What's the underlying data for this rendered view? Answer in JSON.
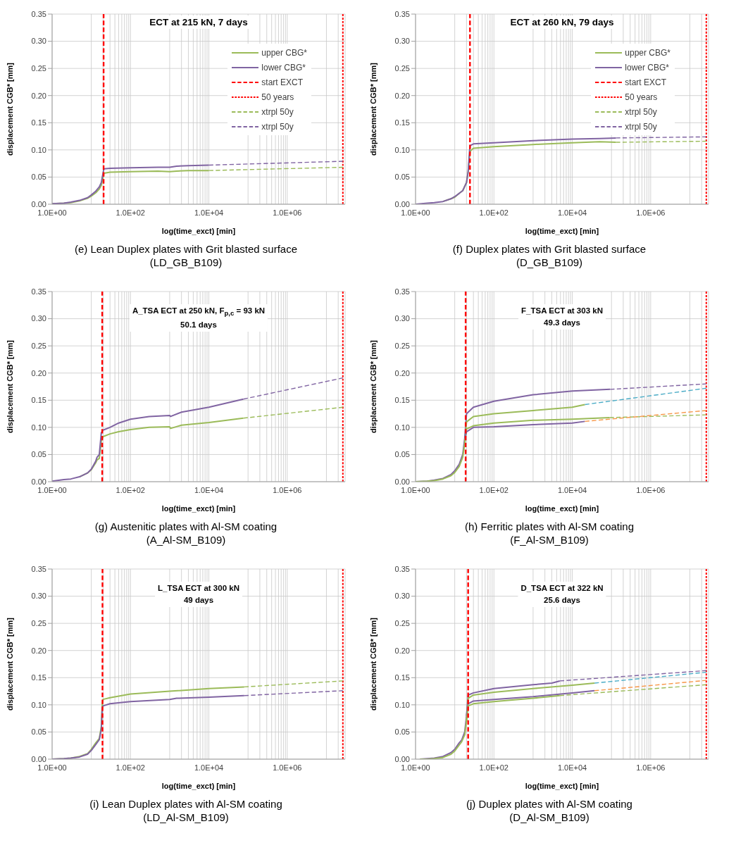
{
  "chart_data": [
    {
      "type": "line",
      "title": "ECT at 215 kN, 7 days",
      "xlabel": "log(time_exct) [min]",
      "ylabel": "displacement CGB* [mm]",
      "annotations": [
        "(e) Lean Duplex plates with Grit blasted surface",
        "(LD_GB_B109)"
      ],
      "log": "x",
      "grid": true,
      "legend": "top right",
      "marker": "none",
      "xlim": [
        1,
        30000000
      ],
      "ylim": [
        0,
        0.35
      ],
      "xticks": [
        {
          "value": 1,
          "label": "1.0E+00"
        },
        {
          "value": 10,
          "label": null
        },
        {
          "value": 20,
          "label": null
        },
        {
          "value": 30,
          "label": null
        },
        {
          "value": 40,
          "label": null
        },
        {
          "value": 50,
          "label": null
        },
        {
          "value": 60,
          "label": null
        },
        {
          "value": 70,
          "label": null
        },
        {
          "value": 80,
          "label": null
        },
        {
          "value": 90,
          "label": null
        },
        {
          "value": 100,
          "label": "1.0E+02"
        },
        {
          "value": 1000,
          "label": null
        },
        {
          "value": 2000,
          "label": null
        },
        {
          "value": 3000,
          "label": null
        },
        {
          "value": 4000,
          "label": null
        },
        {
          "value": 5000,
          "label": null
        },
        {
          "value": 6000,
          "label": null
        },
        {
          "value": 7000,
          "label": null
        },
        {
          "value": 8000,
          "label": null
        },
        {
          "value": 9000,
          "label": null
        },
        {
          "value": 10000,
          "label": "1.0E+04"
        },
        {
          "value": 100000,
          "label": null
        },
        {
          "value": 200000,
          "label": null
        },
        {
          "value": 300000,
          "label": null
        },
        {
          "value": 400000,
          "label": null
        },
        {
          "value": 500000,
          "label": null
        },
        {
          "value": 600000,
          "label": null
        },
        {
          "value": 700000,
          "label": null
        },
        {
          "value": 800000,
          "label": null
        },
        {
          "value": 900000,
          "label": null
        },
        {
          "value": 1000000,
          "label": "1.0E+06"
        },
        {
          "value": 10000000,
          "label": null
        },
        {
          "value": 20000000,
          "label": null
        }
      ],
      "yticks": [
        {
          "value": 0,
          "label": "0.00"
        },
        {
          "value": 0.05,
          "label": "0.05"
        },
        {
          "value": 0.1,
          "label": "0.10"
        },
        {
          "value": 0.15,
          "label": "0.15"
        },
        {
          "value": 0.2,
          "label": "0.20"
        },
        {
          "value": 0.25,
          "label": "0.25"
        },
        {
          "value": 0.3,
          "label": "0.30"
        },
        {
          "value": 0.35,
          "label": "0.35"
        }
      ],
      "series": [
        {
          "name": "upper CBG*",
          "color": "#9bbb59",
          "line_style": "solid",
          "x": [
            1,
            2,
            3,
            5,
            8,
            10,
            13,
            16,
            18,
            20,
            21,
            30,
            100,
            500,
            1000,
            1500,
            3000,
            10000
          ],
          "values": [
            0.001,
            0.002,
            0.003,
            0.006,
            0.011,
            0.015,
            0.021,
            0.028,
            0.035,
            0.05,
            0.057,
            0.059,
            0.06,
            0.061,
            0.06,
            0.061,
            0.062,
            0.062
          ]
        },
        {
          "name": "lower CBG*",
          "color": "#8064a2",
          "line_style": "solid",
          "x": [
            1,
            2,
            3,
            5,
            8,
            10,
            13,
            16,
            18,
            20,
            21,
            30,
            100,
            500,
            1000,
            1500,
            3000,
            10000
          ],
          "values": [
            0.001,
            0.002,
            0.004,
            0.007,
            0.012,
            0.017,
            0.024,
            0.032,
            0.04,
            0.058,
            0.065,
            0.066,
            0.067,
            0.068,
            0.068,
            0.07,
            0.071,
            0.072
          ]
        },
        {
          "name": "start EXCT",
          "color": "#ff0000",
          "line_style": "dashed",
          "x": [
            20.6,
            20.6
          ],
          "values": [
            0,
            0.35
          ]
        },
        {
          "name": "50 years",
          "color": "#ff0000",
          "line_style": "dotted",
          "x": [
            26300000,
            26300000
          ],
          "values": [
            0,
            0.35
          ]
        },
        {
          "name": "xtrpl 50y",
          "color": "#9bbb59",
          "line_style": "dashed",
          "x": [
            10000,
            26300000
          ],
          "values": [
            0.062,
            0.068
          ]
        },
        {
          "name": "xtrpl 50y",
          "color": "#8064a2",
          "line_style": "dashed",
          "x": [
            10000,
            26300000
          ],
          "values": [
            0.072,
            0.079
          ]
        }
      ]
    },
    {
      "type": "line",
      "title": "ECT at 260 kN, 79 days",
      "xlabel": "log(time_exct) [min]",
      "ylabel": "displacement CGB* [mm]",
      "annotations": [
        "(f) Duplex plates with Grit blasted surface",
        "(D_GB_B109)"
      ],
      "log": "x",
      "grid": true,
      "legend": "top right",
      "marker": "none",
      "xlim": [
        1,
        30000000
      ],
      "ylim": [
        0,
        0.35
      ],
      "xticks": [
        {
          "value": 1,
          "label": "1.0E+00"
        },
        {
          "value": 10,
          "label": null
        },
        {
          "value": 20,
          "label": null
        },
        {
          "value": 30,
          "label": null
        },
        {
          "value": 40,
          "label": null
        },
        {
          "value": 50,
          "label": null
        },
        {
          "value": 60,
          "label": null
        },
        {
          "value": 70,
          "label": null
        },
        {
          "value": 80,
          "label": null
        },
        {
          "value": 90,
          "label": null
        },
        {
          "value": 100,
          "label": "1.0E+02"
        },
        {
          "value": 1000,
          "label": null
        },
        {
          "value": 2000,
          "label": null
        },
        {
          "value": 3000,
          "label": null
        },
        {
          "value": 4000,
          "label": null
        },
        {
          "value": 5000,
          "label": null
        },
        {
          "value": 6000,
          "label": null
        },
        {
          "value": 7000,
          "label": null
        },
        {
          "value": 8000,
          "label": null
        },
        {
          "value": 9000,
          "label": null
        },
        {
          "value": 10000,
          "label": "1.0E+04"
        },
        {
          "value": 100000,
          "label": null
        },
        {
          "value": 200000,
          "label": null
        },
        {
          "value": 300000,
          "label": null
        },
        {
          "value": 400000,
          "label": null
        },
        {
          "value": 500000,
          "label": null
        },
        {
          "value": 600000,
          "label": null
        },
        {
          "value": 700000,
          "label": null
        },
        {
          "value": 800000,
          "label": null
        },
        {
          "value": 900000,
          "label": null
        },
        {
          "value": 1000000,
          "label": "1.0E+06"
        },
        {
          "value": 10000000,
          "label": null
        },
        {
          "value": 20000000,
          "label": null
        }
      ],
      "yticks": [
        {
          "value": 0,
          "label": "0.00"
        },
        {
          "value": 0.05,
          "label": "0.05"
        },
        {
          "value": 0.1,
          "label": "0.10"
        },
        {
          "value": 0.15,
          "label": "0.15"
        },
        {
          "value": 0.2,
          "label": "0.20"
        },
        {
          "value": 0.25,
          "label": "0.25"
        },
        {
          "value": 0.3,
          "label": "0.30"
        },
        {
          "value": 0.35,
          "label": "0.35"
        }
      ],
      "series": [
        {
          "name": "upper CBG*",
          "color": "#9bbb59",
          "line_style": "solid",
          "x": [
            5,
            8,
            10,
            13,
            16,
            20,
            22,
            24,
            25,
            30,
            100,
            1000,
            10000,
            50000,
            130000
          ],
          "values": [
            0.005,
            0.01,
            0.013,
            0.02,
            0.025,
            0.04,
            0.06,
            0.09,
            0.098,
            0.103,
            0.106,
            0.11,
            0.113,
            0.115,
            0.114
          ]
        },
        {
          "name": "lower CBG*",
          "color": "#8064a2",
          "line_style": "solid",
          "x": [
            1,
            2,
            3,
            5,
            8,
            10,
            13,
            16,
            20,
            22,
            24,
            25,
            30,
            100,
            1000,
            10000,
            50000,
            130000
          ],
          "values": [
            0,
            0.002,
            0.003,
            0.005,
            0.01,
            0.014,
            0.02,
            0.025,
            0.04,
            0.06,
            0.1,
            0.108,
            0.111,
            0.113,
            0.117,
            0.12,
            0.121,
            0.122
          ]
        },
        {
          "name": "start EXCT",
          "color": "#ff0000",
          "line_style": "dashed",
          "x": [
            24.5,
            24.5
          ],
          "values": [
            0,
            0.35
          ]
        },
        {
          "name": "50 years",
          "color": "#ff0000",
          "line_style": "dotted",
          "x": [
            26300000,
            26300000
          ],
          "values": [
            0,
            0.35
          ]
        },
        {
          "name": "xtrpl 50y",
          "color": "#9bbb59",
          "line_style": "dashed",
          "x": [
            130000,
            26300000
          ],
          "values": [
            0.114,
            0.116
          ]
        },
        {
          "name": "xtrpl 50y",
          "color": "#8064a2",
          "line_style": "dashed",
          "x": [
            130000,
            26300000
          ],
          "values": [
            0.122,
            0.124
          ]
        }
      ]
    },
    {
      "type": "line",
      "title": "A_TSA ECT at 250 kN, F$_{p,c}$ = 93 kN",
      "subtitle": "50.1 days",
      "xlabel": "log(time_exct) [min]",
      "ylabel": "displacement CGB* [mm]",
      "annotations": [
        "(g) Austenitic plates with Al-SM coating",
        "(A_Al-SM_B109)"
      ],
      "log": "x",
      "grid": true,
      "marker": "none",
      "xlim": [
        1,
        30000000
      ],
      "ylim": [
        0,
        0.35
      ],
      "xticks": [
        {
          "value": 1,
          "label": "1.0E+00"
        },
        {
          "value": 10,
          "label": null
        },
        {
          "value": 20,
          "label": null
        },
        {
          "value": 30,
          "label": null
        },
        {
          "value": 40,
          "label": null
        },
        {
          "value": 50,
          "label": null
        },
        {
          "value": 60,
          "label": null
        },
        {
          "value": 70,
          "label": null
        },
        {
          "value": 80,
          "label": null
        },
        {
          "value": 90,
          "label": null
        },
        {
          "value": 100,
          "label": "1.0E+02"
        },
        {
          "value": 1000,
          "label": null
        },
        {
          "value": 2000,
          "label": null
        },
        {
          "value": 3000,
          "label": null
        },
        {
          "value": 4000,
          "label": null
        },
        {
          "value": 5000,
          "label": null
        },
        {
          "value": 6000,
          "label": null
        },
        {
          "value": 7000,
          "label": null
        },
        {
          "value": 8000,
          "label": null
        },
        {
          "value": 9000,
          "label": null
        },
        {
          "value": 10000,
          "label": "1.0E+04"
        },
        {
          "value": 100000,
          "label": null
        },
        {
          "value": 200000,
          "label": null
        },
        {
          "value": 300000,
          "label": null
        },
        {
          "value": 400000,
          "label": null
        },
        {
          "value": 500000,
          "label": null
        },
        {
          "value": 600000,
          "label": null
        },
        {
          "value": 700000,
          "label": null
        },
        {
          "value": 800000,
          "label": null
        },
        {
          "value": 900000,
          "label": null
        },
        {
          "value": 1000000,
          "label": "1.0E+06"
        },
        {
          "value": 10000000,
          "label": null
        },
        {
          "value": 20000000,
          "label": null
        }
      ],
      "yticks": [
        {
          "value": 0,
          "label": "0.00"
        },
        {
          "value": 0.05,
          "label": "0.05"
        },
        {
          "value": 0.1,
          "label": "0.10"
        },
        {
          "value": 0.15,
          "label": "0.15"
        },
        {
          "value": 0.2,
          "label": "0.20"
        },
        {
          "value": 0.25,
          "label": "0.25"
        },
        {
          "value": 0.3,
          "label": "0.30"
        },
        {
          "value": 0.35,
          "label": "0.35"
        }
      ],
      "series": [
        {
          "color": "#9bbb59",
          "line_style": "solid",
          "x": [
            5,
            8,
            10,
            13,
            14,
            16,
            18,
            20,
            30,
            50,
            100,
            300,
            1000,
            1050,
            2000,
            10000,
            76000
          ],
          "values": [
            0.009,
            0.016,
            0.022,
            0.035,
            0.04,
            0.043,
            0.075,
            0.083,
            0.088,
            0.092,
            0.096,
            0.1,
            0.101,
            0.098,
            0.104,
            0.109,
            0.117
          ]
        },
        {
          "color": "#8064a2",
          "line_style": "solid",
          "x": [
            1,
            2,
            3,
            5,
            8,
            10,
            13,
            14,
            16,
            18,
            20,
            30,
            50,
            100,
            300,
            1000,
            1050,
            2000,
            10000,
            76000
          ],
          "values": [
            0.001,
            0.004,
            0.005,
            0.009,
            0.016,
            0.023,
            0.038,
            0.045,
            0.05,
            0.09,
            0.095,
            0.1,
            0.108,
            0.115,
            0.12,
            0.122,
            0.12,
            0.128,
            0.137,
            0.152
          ]
        },
        {
          "color": "#ff0000",
          "line_style": "dashed",
          "x": [
            19,
            19
          ],
          "values": [
            0,
            0.35
          ]
        },
        {
          "color": "#ff0000",
          "line_style": "dotted",
          "x": [
            26300000,
            26300000
          ],
          "values": [
            0,
            0.35
          ]
        },
        {
          "color": "#9bbb59",
          "line_style": "dashed",
          "x": [
            76000,
            26300000
          ],
          "values": [
            0.117,
            0.137
          ]
        },
        {
          "color": "#8064a2",
          "line_style": "dashed",
          "x": [
            76000,
            26300000
          ],
          "values": [
            0.152,
            0.191
          ]
        }
      ]
    },
    {
      "type": "line",
      "title": "F_TSA ECT at 303 kN",
      "subtitle": "49.3 days",
      "xlabel": "log(time_exct) [min]",
      "ylabel": "displacement CGB* [mm]",
      "annotations": [
        "(h) Ferritic plates with Al-SM coating",
        "(F_Al-SM_B109)"
      ],
      "log": "x",
      "grid": true,
      "marker": "none",
      "xlim": [
        1,
        30000000
      ],
      "ylim": [
        0,
        0.35
      ],
      "xticks": [
        {
          "value": 1,
          "label": "1.0E+00"
        },
        {
          "value": 10,
          "label": null
        },
        {
          "value": 20,
          "label": null
        },
        {
          "value": 30,
          "label": null
        },
        {
          "value": 40,
          "label": null
        },
        {
          "value": 50,
          "label": null
        },
        {
          "value": 60,
          "label": null
        },
        {
          "value": 70,
          "label": null
        },
        {
          "value": 80,
          "label": null
        },
        {
          "value": 90,
          "label": null
        },
        {
          "value": 100,
          "label": "1.0E+02"
        },
        {
          "value": 1000,
          "label": null
        },
        {
          "value": 2000,
          "label": null
        },
        {
          "value": 3000,
          "label": null
        },
        {
          "value": 4000,
          "label": null
        },
        {
          "value": 5000,
          "label": null
        },
        {
          "value": 6000,
          "label": null
        },
        {
          "value": 7000,
          "label": null
        },
        {
          "value": 8000,
          "label": null
        },
        {
          "value": 9000,
          "label": null
        },
        {
          "value": 10000,
          "label": "1.0E+04"
        },
        {
          "value": 100000,
          "label": null
        },
        {
          "value": 200000,
          "label": null
        },
        {
          "value": 300000,
          "label": null
        },
        {
          "value": 400000,
          "label": null
        },
        {
          "value": 500000,
          "label": null
        },
        {
          "value": 600000,
          "label": null
        },
        {
          "value": 700000,
          "label": null
        },
        {
          "value": 800000,
          "label": null
        },
        {
          "value": 900000,
          "label": null
        },
        {
          "value": 1000000,
          "label": "1.0E+06"
        },
        {
          "value": 10000000,
          "label": null
        },
        {
          "value": 20000000,
          "label": null
        }
      ],
      "yticks": [
        {
          "value": 0,
          "label": "0.00"
        },
        {
          "value": 0.05,
          "label": "0.05"
        },
        {
          "value": 0.1,
          "label": "0.10"
        },
        {
          "value": 0.15,
          "label": "0.15"
        },
        {
          "value": 0.2,
          "label": "0.20"
        },
        {
          "value": 0.25,
          "label": "0.25"
        },
        {
          "value": 0.3,
          "label": "0.30"
        },
        {
          "value": 0.35,
          "label": "0.35"
        }
      ],
      "series": [
        {
          "color": "#8064a2",
          "line_style": "solid",
          "x": [
            1,
            2,
            3,
            5,
            8,
            10,
            13,
            16,
            18,
            20,
            30,
            100,
            1000,
            10000,
            93000
          ],
          "values": [
            0,
            0.001,
            0.003,
            0.006,
            0.013,
            0.02,
            0.032,
            0.05,
            0.08,
            0.125,
            0.137,
            0.148,
            0.16,
            0.167,
            0.17
          ]
        },
        {
          "color": "#9bbb59",
          "line_style": "solid",
          "x": [
            1,
            2,
            3,
            5,
            8,
            10,
            13,
            16,
            18,
            20,
            30,
            100,
            1000,
            10000,
            21000
          ],
          "values": [
            0,
            0.001,
            0.002,
            0.005,
            0.011,
            0.017,
            0.028,
            0.045,
            0.07,
            0.11,
            0.12,
            0.125,
            0.131,
            0.137,
            0.142
          ]
        },
        {
          "color": "#9bbb59",
          "line_style": "solid",
          "x": [
            18,
            20,
            30,
            100,
            1000,
            10000,
            90000
          ],
          "values": [
            0.07,
            0.097,
            0.103,
            0.108,
            0.113,
            0.115,
            0.118
          ]
        },
        {
          "color": "#8064a2",
          "line_style": "solid",
          "x": [
            18,
            20,
            30,
            100,
            1000,
            10000,
            21000
          ],
          "values": [
            0.08,
            0.092,
            0.1,
            0.101,
            0.105,
            0.108,
            0.111
          ]
        },
        {
          "color": "#ff0000",
          "line_style": "dashed",
          "x": [
            19,
            19
          ],
          "values": [
            0,
            0.35
          ]
        },
        {
          "color": "#ff0000",
          "line_style": "dotted",
          "x": [
            26300000,
            26300000
          ],
          "values": [
            0,
            0.35
          ]
        },
        {
          "color": "#8064a2",
          "line_style": "dashed",
          "x": [
            93000,
            26300000
          ],
          "values": [
            0.17,
            0.18
          ]
        },
        {
          "color": "#4bacc6",
          "line_style": "dashed",
          "x": [
            21000,
            26300000
          ],
          "values": [
            0.142,
            0.172
          ]
        },
        {
          "color": "#9bbb59",
          "line_style": "dashed",
          "x": [
            90000,
            26300000
          ],
          "values": [
            0.118,
            0.123
          ]
        },
        {
          "color": "#f79646",
          "line_style": "dashed",
          "x": [
            21000,
            26300000
          ],
          "values": [
            0.111,
            0.131
          ]
        }
      ]
    },
    {
      "type": "line",
      "title": "L_TSA ECT at 300 kN",
      "subtitle": "49 days",
      "xlabel": "log(time_exct) [min]",
      "ylabel": "displacement CGB* [mm]",
      "annotations": [
        "(i) Lean Duplex plates with Al-SM coating",
        "(LD_Al-SM_B109)"
      ],
      "log": "x",
      "grid": true,
      "marker": "none",
      "xlim": [
        1,
        30000000
      ],
      "ylim": [
        0,
        0.35
      ],
      "xticks": [
        {
          "value": 1,
          "label": "1.0E+00"
        },
        {
          "value": 10,
          "label": null
        },
        {
          "value": 20,
          "label": null
        },
        {
          "value": 30,
          "label": null
        },
        {
          "value": 40,
          "label": null
        },
        {
          "value": 50,
          "label": null
        },
        {
          "value": 60,
          "label": null
        },
        {
          "value": 70,
          "label": null
        },
        {
          "value": 80,
          "label": null
        },
        {
          "value": 90,
          "label": null
        },
        {
          "value": 100,
          "label": "1.0E+02"
        },
        {
          "value": 1000,
          "label": null
        },
        {
          "value": 2000,
          "label": null
        },
        {
          "value": 3000,
          "label": null
        },
        {
          "value": 4000,
          "label": null
        },
        {
          "value": 5000,
          "label": null
        },
        {
          "value": 6000,
          "label": null
        },
        {
          "value": 7000,
          "label": null
        },
        {
          "value": 8000,
          "label": null
        },
        {
          "value": 9000,
          "label": null
        },
        {
          "value": 10000,
          "label": "1.0E+04"
        },
        {
          "value": 100000,
          "label": null
        },
        {
          "value": 200000,
          "label": null
        },
        {
          "value": 300000,
          "label": null
        },
        {
          "value": 400000,
          "label": null
        },
        {
          "value": 500000,
          "label": null
        },
        {
          "value": 600000,
          "label": null
        },
        {
          "value": 700000,
          "label": null
        },
        {
          "value": 800000,
          "label": null
        },
        {
          "value": 900000,
          "label": null
        },
        {
          "value": 1000000,
          "label": "1.0E+06"
        },
        {
          "value": 10000000,
          "label": null
        },
        {
          "value": 20000000,
          "label": null
        }
      ],
      "yticks": [
        {
          "value": 0,
          "label": "0.00"
        },
        {
          "value": 0.05,
          "label": "0.05"
        },
        {
          "value": 0.1,
          "label": "0.10"
        },
        {
          "value": 0.15,
          "label": "0.15"
        },
        {
          "value": 0.2,
          "label": "0.20"
        },
        {
          "value": 0.25,
          "label": "0.25"
        },
        {
          "value": 0.3,
          "label": "0.30"
        },
        {
          "value": 0.35,
          "label": "0.35"
        }
      ],
      "series": [
        {
          "color": "#9bbb59",
          "line_style": "solid",
          "x": [
            1,
            2,
            3,
            5,
            8,
            10,
            13,
            16,
            18,
            19,
            20,
            30,
            100,
            1000,
            10000,
            80000
          ],
          "values": [
            0,
            0.001,
            0.002,
            0.005,
            0.01,
            0.018,
            0.03,
            0.038,
            0.06,
            0.1,
            0.11,
            0.113,
            0.12,
            0.125,
            0.13,
            0.133
          ]
        },
        {
          "color": "#8064a2",
          "line_style": "solid",
          "x": [
            1,
            2,
            3,
            5,
            8,
            10,
            13,
            16,
            18,
            19,
            20,
            30,
            100,
            1000,
            1500,
            10000,
            80000
          ],
          "values": [
            0,
            0.001,
            0.002,
            0.004,
            0.009,
            0.016,
            0.027,
            0.036,
            0.055,
            0.095,
            0.098,
            0.102,
            0.106,
            0.11,
            0.112,
            0.114,
            0.117
          ]
        },
        {
          "color": "#ff0000",
          "line_style": "dashed",
          "x": [
            19.3,
            19.3
          ],
          "values": [
            0,
            0.35
          ]
        },
        {
          "color": "#ff0000",
          "line_style": "dotted",
          "x": [
            26300000,
            26300000
          ],
          "values": [
            0,
            0.35
          ]
        },
        {
          "color": "#9bbb59",
          "line_style": "dashed",
          "x": [
            80000,
            26300000
          ],
          "values": [
            0.133,
            0.144
          ]
        },
        {
          "color": "#8064a2",
          "line_style": "dashed",
          "x": [
            80000,
            26300000
          ],
          "values": [
            0.117,
            0.126
          ]
        }
      ]
    },
    {
      "type": "line",
      "title": "D_TSA ECT at 322 kN",
      "subtitle": "25.6 days",
      "xlabel": "log(time_exct) [min]",
      "ylabel": "displacement CGB* [mm]",
      "annotations": [
        "(j) Duplex plates with Al-SM coating",
        "(D_Al-SM_B109)"
      ],
      "log": "x",
      "grid": true,
      "marker": "none",
      "xlim": [
        1,
        30000000
      ],
      "ylim": [
        0,
        0.35
      ],
      "xticks": [
        {
          "value": 1,
          "label": "1.0E+00"
        },
        {
          "value": 10,
          "label": null
        },
        {
          "value": 20,
          "label": null
        },
        {
          "value": 30,
          "label": null
        },
        {
          "value": 40,
          "label": null
        },
        {
          "value": 50,
          "label": null
        },
        {
          "value": 60,
          "label": null
        },
        {
          "value": 70,
          "label": null
        },
        {
          "value": 80,
          "label": null
        },
        {
          "value": 90,
          "label": null
        },
        {
          "value": 100,
          "label": "1.0E+02"
        },
        {
          "value": 1000,
          "label": null
        },
        {
          "value": 2000,
          "label": null
        },
        {
          "value": 3000,
          "label": null
        },
        {
          "value": 4000,
          "label": null
        },
        {
          "value": 5000,
          "label": null
        },
        {
          "value": 6000,
          "label": null
        },
        {
          "value": 7000,
          "label": null
        },
        {
          "value": 8000,
          "label": null
        },
        {
          "value": 9000,
          "label": null
        },
        {
          "value": 10000,
          "label": "1.0E+04"
        },
        {
          "value": 100000,
          "label": null
        },
        {
          "value": 200000,
          "label": null
        },
        {
          "value": 300000,
          "label": null
        },
        {
          "value": 400000,
          "label": null
        },
        {
          "value": 500000,
          "label": null
        },
        {
          "value": 600000,
          "label": null
        },
        {
          "value": 700000,
          "label": null
        },
        {
          "value": 800000,
          "label": null
        },
        {
          "value": 900000,
          "label": null
        },
        {
          "value": 1000000,
          "label": "1.0E+06"
        },
        {
          "value": 10000000,
          "label": null
        },
        {
          "value": 20000000,
          "label": null
        }
      ],
      "yticks": [
        {
          "value": 0,
          "label": "0.00"
        },
        {
          "value": 0.05,
          "label": "0.05"
        },
        {
          "value": 0.1,
          "label": "0.10"
        },
        {
          "value": 0.15,
          "label": "0.15"
        },
        {
          "value": 0.2,
          "label": "0.20"
        },
        {
          "value": 0.25,
          "label": "0.25"
        },
        {
          "value": 0.3,
          "label": "0.30"
        },
        {
          "value": 0.35,
          "label": "0.35"
        }
      ],
      "series": [
        {
          "color": "#8064a2",
          "line_style": "solid",
          "x": [
            1.3,
            2,
            3,
            5,
            8,
            10,
            13,
            15,
            18,
            20,
            22,
            30,
            100,
            1000,
            3000,
            4800
          ],
          "values": [
            0,
            0.001,
            0.002,
            0.005,
            0.012,
            0.018,
            0.03,
            0.035,
            0.05,
            0.08,
            0.118,
            0.122,
            0.13,
            0.137,
            0.14,
            0.144
          ]
        },
        {
          "color": "#9bbb59",
          "line_style": "solid",
          "x": [
            1.3,
            2,
            3,
            5,
            8,
            10,
            13,
            15,
            18,
            20,
            22,
            30,
            100,
            1000,
            10000,
            37000
          ],
          "values": [
            0,
            0,
            0.001,
            0.003,
            0.009,
            0.015,
            0.026,
            0.032,
            0.045,
            0.07,
            0.112,
            0.118,
            0.123,
            0.13,
            0.136,
            0.14
          ]
        },
        {
          "color": "#8064a2",
          "line_style": "solid",
          "x": [
            20,
            22,
            30,
            100,
            1000,
            10000,
            37000
          ],
          "values": [
            0.08,
            0.102,
            0.107,
            0.11,
            0.115,
            0.122,
            0.126
          ]
        },
        {
          "color": "#9bbb59",
          "line_style": "solid",
          "x": [
            20,
            22,
            30,
            100,
            1000,
            4800
          ],
          "values": [
            0.07,
            0.098,
            0.102,
            0.106,
            0.112,
            0.117
          ]
        },
        {
          "color": "#ff0000",
          "line_style": "dashed",
          "x": [
            22,
            22
          ],
          "values": [
            0,
            0.35
          ]
        },
        {
          "color": "#ff0000",
          "line_style": "dotted",
          "x": [
            26300000,
            26300000
          ],
          "values": [
            0,
            0.35
          ]
        },
        {
          "color": "#8064a2",
          "line_style": "dashed",
          "x": [
            4800,
            26300000
          ],
          "values": [
            0.144,
            0.163
          ]
        },
        {
          "color": "#4bacc6",
          "line_style": "dashed",
          "x": [
            37000,
            26300000
          ],
          "values": [
            0.14,
            0.16
          ]
        },
        {
          "color": "#f79646",
          "line_style": "dashed",
          "x": [
            37000,
            26300000
          ],
          "values": [
            0.126,
            0.145
          ]
        },
        {
          "color": "#9bbb59",
          "line_style": "dashed",
          "x": [
            4800,
            26300000
          ],
          "values": [
            0.117,
            0.137
          ]
        }
      ]
    }
  ]
}
